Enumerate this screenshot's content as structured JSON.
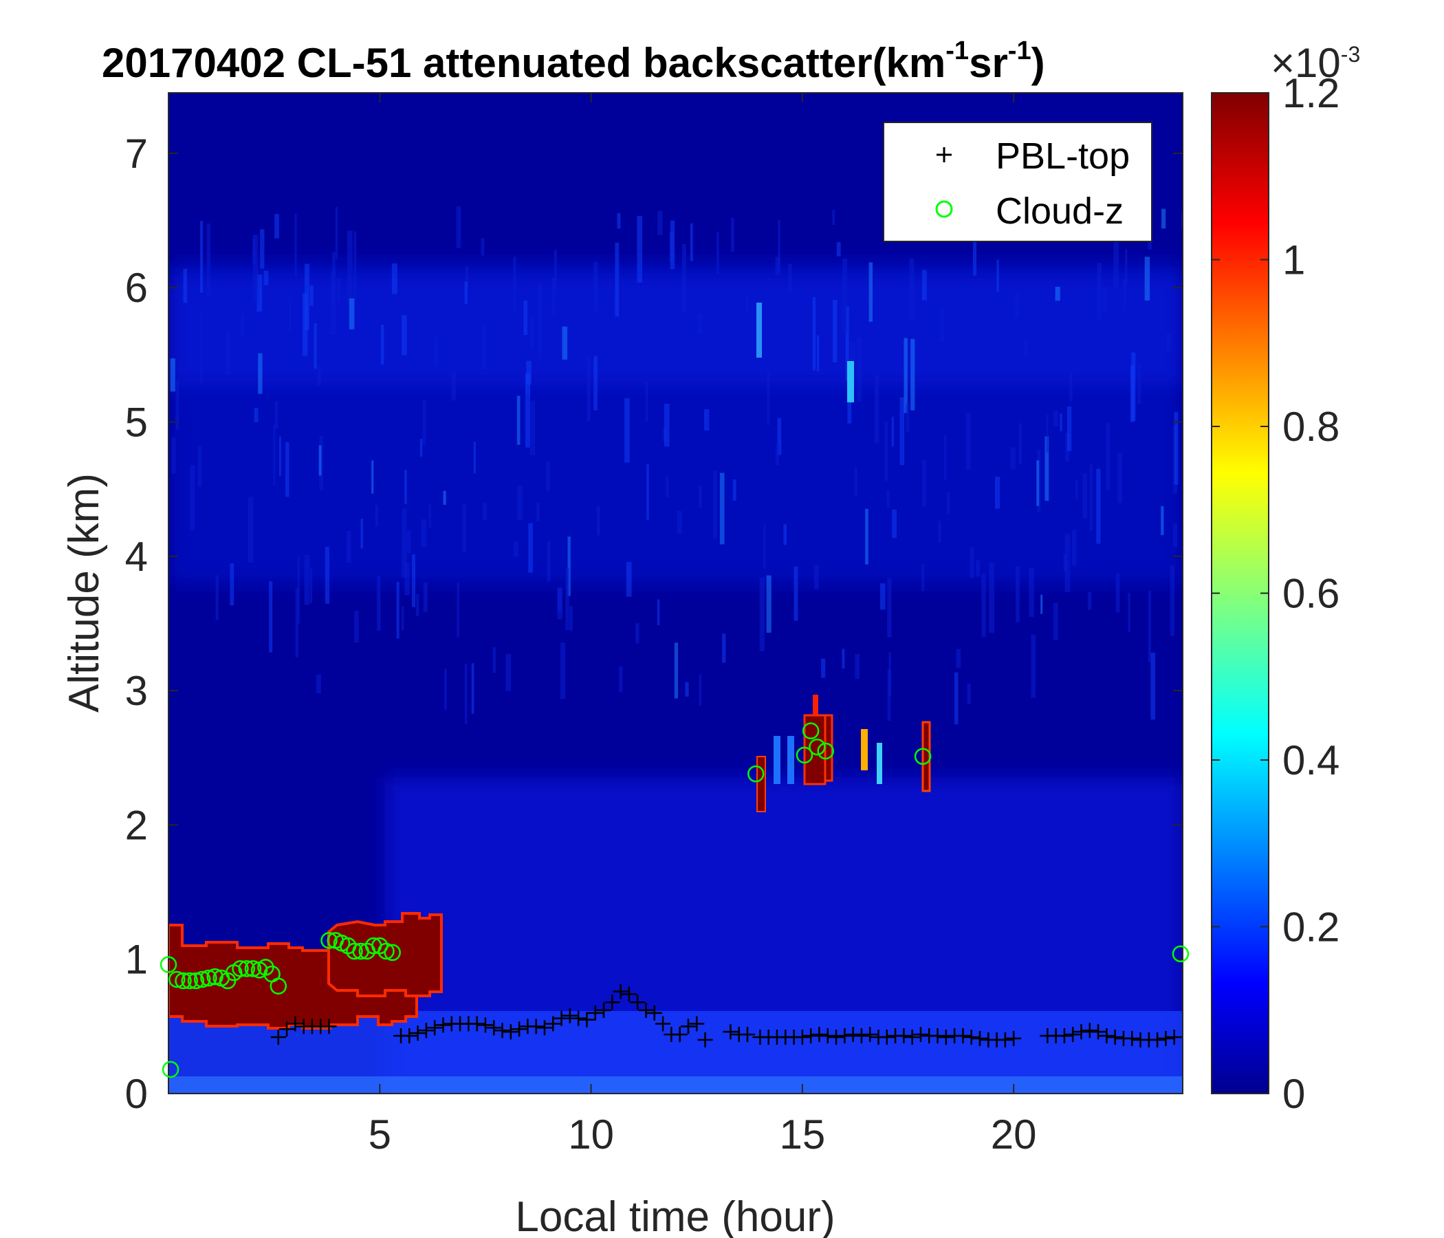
{
  "chart_data": {
    "type": "heatmap",
    "title": "20170402  CL-51 attenuated backscatter(km",
    "title_parts": {
      "exp1": "-1",
      "mid": "sr",
      "exp2": "-1",
      "end": ")"
    },
    "xlabel": "Local time (hour)",
    "ylabel": "Altitude (km)",
    "xlim": [
      0,
      24
    ],
    "ylim": [
      0,
      7.45
    ],
    "xticks": [
      5,
      10,
      15,
      20
    ],
    "yticks": [
      0,
      1,
      2,
      3,
      4,
      5,
      6,
      7
    ],
    "colorbar": {
      "colormap": "jet",
      "limits": [
        0,
        0.0012
      ],
      "multiplier": "×10",
      "multiplier_exp": "-3",
      "ticks": [
        0,
        0.2,
        0.4,
        0.6,
        0.8,
        1,
        1.2
      ],
      "tick_labels": [
        "0",
        "0.2",
        "0.4",
        "0.6",
        "0.8",
        "1",
        "1.2"
      ]
    },
    "legend": {
      "placement": "top-right",
      "entries": [
        "PBL-top",
        "Cloud-z"
      ]
    },
    "series": [
      {
        "name": "PBL-top",
        "marker": "plus",
        "color": "#000000",
        "points": [
          [
            2.6,
            0.42
          ],
          [
            2.8,
            0.48
          ],
          [
            3.0,
            0.52
          ],
          [
            3.2,
            0.5
          ],
          [
            3.4,
            0.5
          ],
          [
            3.6,
            0.5
          ],
          [
            3.8,
            0.5
          ],
          [
            5.5,
            0.43
          ],
          [
            5.7,
            0.43
          ],
          [
            5.9,
            0.45
          ],
          [
            6.1,
            0.47
          ],
          [
            6.3,
            0.49
          ],
          [
            6.5,
            0.51
          ],
          [
            6.7,
            0.52
          ],
          [
            6.9,
            0.52
          ],
          [
            7.1,
            0.52
          ],
          [
            7.3,
            0.52
          ],
          [
            7.5,
            0.51
          ],
          [
            7.7,
            0.49
          ],
          [
            7.9,
            0.47
          ],
          [
            8.1,
            0.46
          ],
          [
            8.3,
            0.48
          ],
          [
            8.5,
            0.5
          ],
          [
            8.7,
            0.5
          ],
          [
            8.9,
            0.49
          ],
          [
            9.1,
            0.52
          ],
          [
            9.3,
            0.56
          ],
          [
            9.5,
            0.58
          ],
          [
            9.7,
            0.56
          ],
          [
            9.9,
            0.55
          ],
          [
            10.1,
            0.6
          ],
          [
            10.3,
            0.62
          ],
          [
            10.5,
            0.68
          ],
          [
            10.7,
            0.76
          ],
          [
            10.9,
            0.74
          ],
          [
            11.1,
            0.68
          ],
          [
            11.3,
            0.62
          ],
          [
            11.5,
            0.6
          ],
          [
            11.7,
            0.52
          ],
          [
            11.9,
            0.44
          ],
          [
            12.1,
            0.44
          ],
          [
            12.3,
            0.5
          ],
          [
            12.5,
            0.52
          ],
          [
            12.7,
            0.4
          ],
          [
            13.3,
            0.46
          ],
          [
            13.5,
            0.44
          ],
          [
            13.7,
            0.44
          ],
          [
            14.0,
            0.42
          ],
          [
            14.2,
            0.42
          ],
          [
            14.4,
            0.42
          ],
          [
            14.6,
            0.42
          ],
          [
            14.8,
            0.42
          ],
          [
            15.0,
            0.42
          ],
          [
            15.2,
            0.43
          ],
          [
            15.4,
            0.44
          ],
          [
            15.6,
            0.43
          ],
          [
            15.8,
            0.42
          ],
          [
            16.0,
            0.43
          ],
          [
            16.2,
            0.44
          ],
          [
            16.4,
            0.43
          ],
          [
            16.6,
            0.44
          ],
          [
            16.8,
            0.42
          ],
          [
            17.0,
            0.42
          ],
          [
            17.2,
            0.43
          ],
          [
            17.4,
            0.43
          ],
          [
            17.6,
            0.42
          ],
          [
            17.8,
            0.44
          ],
          [
            18.0,
            0.43
          ],
          [
            18.2,
            0.43
          ],
          [
            18.4,
            0.42
          ],
          [
            18.6,
            0.43
          ],
          [
            18.8,
            0.43
          ],
          [
            19.0,
            0.42
          ],
          [
            19.2,
            0.41
          ],
          [
            19.4,
            0.4
          ],
          [
            19.6,
            0.4
          ],
          [
            19.8,
            0.4
          ],
          [
            20.0,
            0.41
          ],
          [
            20.8,
            0.43
          ],
          [
            21.0,
            0.43
          ],
          [
            21.2,
            0.43
          ],
          [
            21.4,
            0.44
          ],
          [
            21.6,
            0.46
          ],
          [
            21.8,
            0.47
          ],
          [
            22.0,
            0.46
          ],
          [
            22.2,
            0.43
          ],
          [
            22.4,
            0.42
          ],
          [
            22.6,
            0.41
          ],
          [
            22.8,
            0.41
          ],
          [
            23.0,
            0.4
          ],
          [
            23.2,
            0.4
          ],
          [
            23.4,
            0.4
          ],
          [
            23.6,
            0.41
          ],
          [
            23.8,
            0.42
          ]
        ]
      },
      {
        "name": "Cloud-z",
        "marker": "circle",
        "color": "#00ff00",
        "points": [
          [
            0.0,
            0.96
          ],
          [
            0.05,
            0.18
          ],
          [
            0.2,
            0.85
          ],
          [
            0.35,
            0.84
          ],
          [
            0.5,
            0.84
          ],
          [
            0.65,
            0.84
          ],
          [
            0.8,
            0.85
          ],
          [
            0.95,
            0.86
          ],
          [
            1.1,
            0.87
          ],
          [
            1.25,
            0.86
          ],
          [
            1.4,
            0.84
          ],
          [
            1.55,
            0.9
          ],
          [
            1.7,
            0.93
          ],
          [
            1.85,
            0.93
          ],
          [
            2.0,
            0.93
          ],
          [
            2.15,
            0.92
          ],
          [
            2.3,
            0.94
          ],
          [
            2.45,
            0.89
          ],
          [
            2.6,
            0.8
          ],
          [
            3.8,
            1.14
          ],
          [
            3.95,
            1.14
          ],
          [
            4.1,
            1.12
          ],
          [
            4.25,
            1.1
          ],
          [
            4.4,
            1.06
          ],
          [
            4.55,
            1.06
          ],
          [
            4.7,
            1.06
          ],
          [
            4.85,
            1.1
          ],
          [
            5.0,
            1.1
          ],
          [
            5.15,
            1.06
          ],
          [
            5.3,
            1.05
          ],
          [
            13.9,
            2.38
          ],
          [
            15.05,
            2.52
          ],
          [
            15.2,
            2.7
          ],
          [
            15.35,
            2.58
          ],
          [
            15.55,
            2.55
          ],
          [
            17.85,
            2.51
          ],
          [
            23.95,
            1.04
          ]
        ]
      }
    ]
  }
}
